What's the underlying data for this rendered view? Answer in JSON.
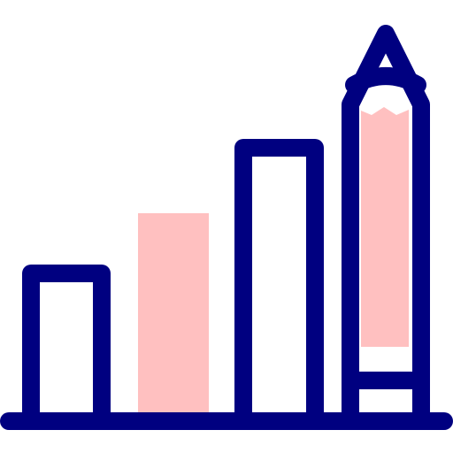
{
  "icon": {
    "name": "bar-chart-with-pencil-icon",
    "colors": {
      "outline": "#000080",
      "accent": "#ffc0c0",
      "background": "#ffffff"
    }
  }
}
